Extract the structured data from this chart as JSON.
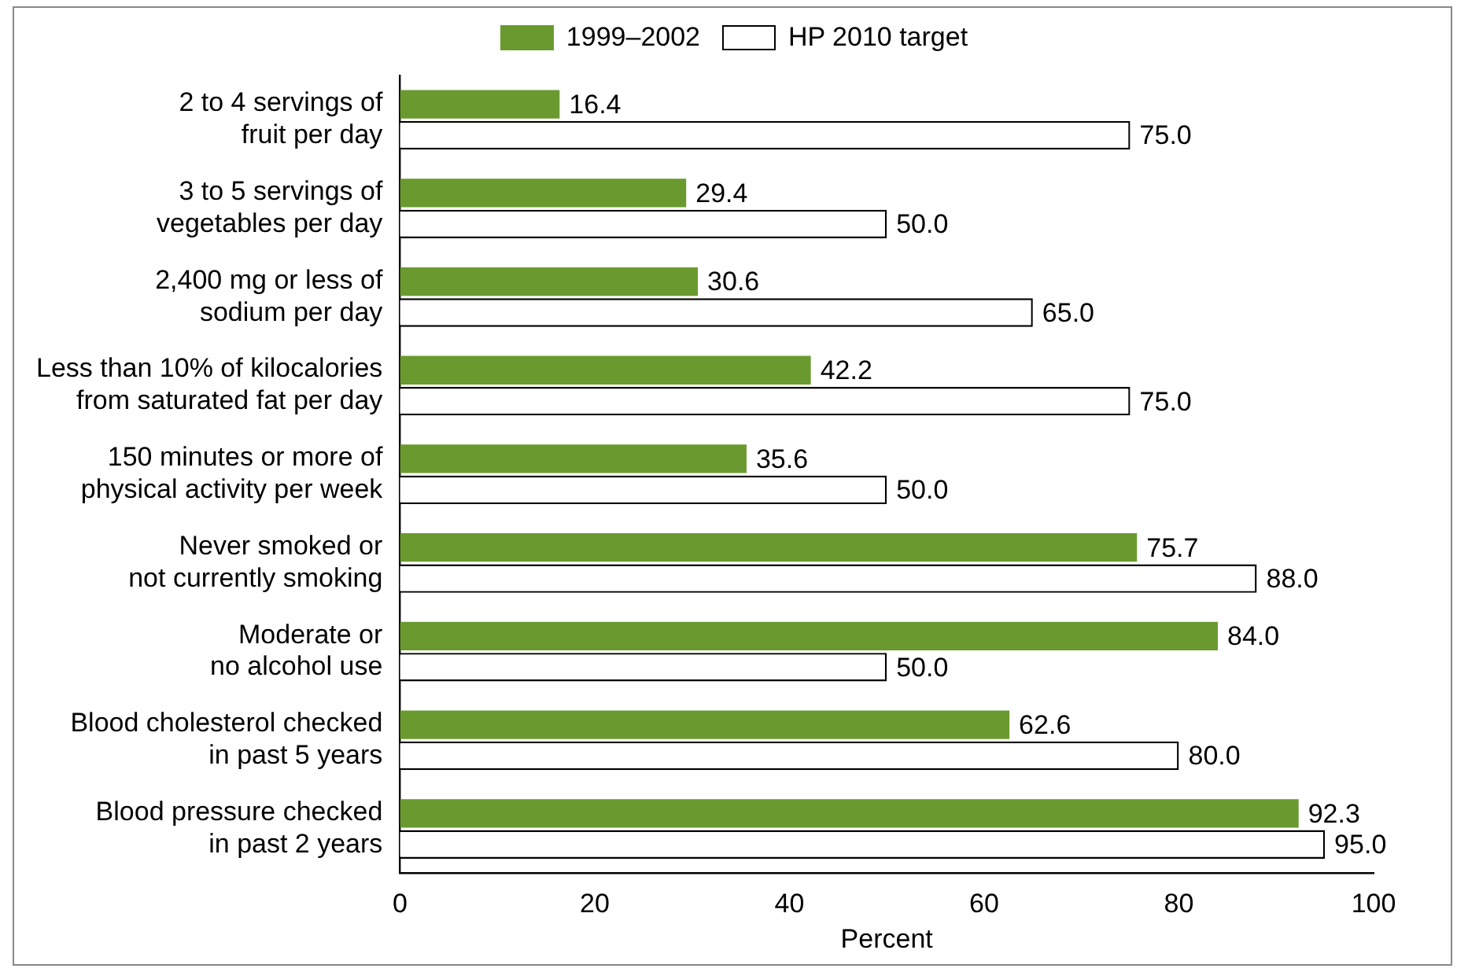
{
  "chart_data": {
    "type": "bar",
    "orientation": "horizontal",
    "xlabel": "Percent",
    "categories": [
      "2 to 4 servings of\nfruit per day",
      "3 to 5 servings of\nvegetables per day",
      "2,400 mg or less of\nsodium per day",
      "Less than 10% of kilocalories\nfrom saturated fat per day",
      "150 minutes or more of\nphysical activity per week",
      "Never smoked or\nnot currently smoking",
      "Moderate or\nno alcohol use",
      "Blood cholesterol checked\nin past 5 years",
      "Blood pressure checked\nin past 2 years"
    ],
    "series": [
      {
        "name": "1999–2002",
        "color": "#6a9a2f",
        "values": [
          16.4,
          29.4,
          30.6,
          42.2,
          35.6,
          75.7,
          84.0,
          62.6,
          92.3
        ],
        "value_labels": [
          "16.4",
          "29.4",
          "30.6",
          "42.2",
          "35.6",
          "75.7",
          "84.0",
          "62.6",
          "92.3"
        ]
      },
      {
        "name": "HP 2010 target",
        "color": "#ffffff",
        "values": [
          75.0,
          50.0,
          65.0,
          75.0,
          50.0,
          88.0,
          50.0,
          80.0,
          95.0
        ],
        "value_labels": [
          "75.0",
          "50.0",
          "65.0",
          "75.0",
          "50.0",
          "88.0",
          "50.0",
          "80.0",
          "95.0"
        ]
      }
    ],
    "xlim": [
      0,
      100
    ],
    "xticks": [
      0,
      20,
      40,
      60,
      80,
      100
    ],
    "grid": false,
    "legend": "top"
  }
}
